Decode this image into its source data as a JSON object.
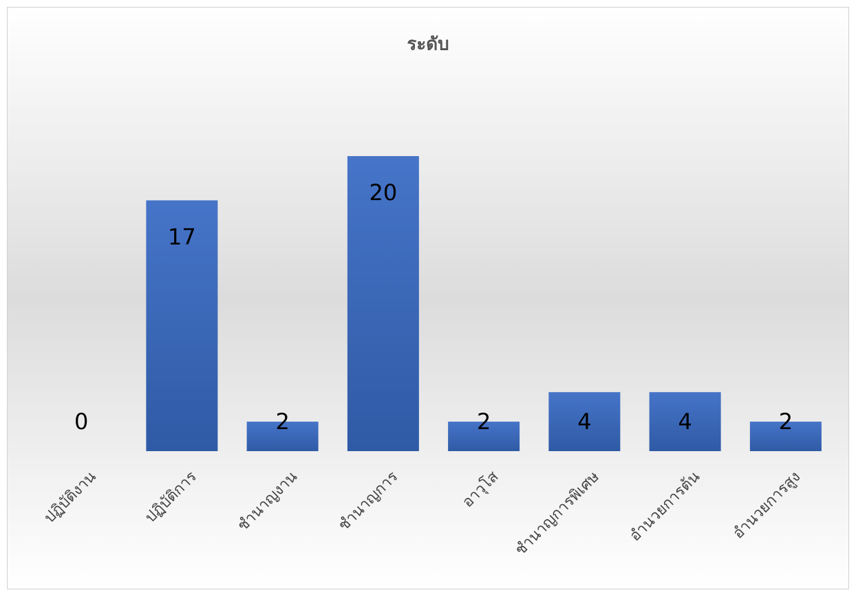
{
  "chart_data": {
    "type": "bar",
    "title": "ระดับ",
    "categories": [
      "ปฏิบัติงาน",
      "ปฏิบัติการ",
      "ชำนาญงาน",
      "ชำนาญการ",
      "อาวุโส",
      "ชำนาญการพิเศษ",
      "อำนวยการต้น",
      "อำนวยการสูง"
    ],
    "values": [
      0,
      17,
      2,
      20,
      2,
      4,
      4,
      2
    ],
    "color": "#4472c4",
    "grid": false
  }
}
